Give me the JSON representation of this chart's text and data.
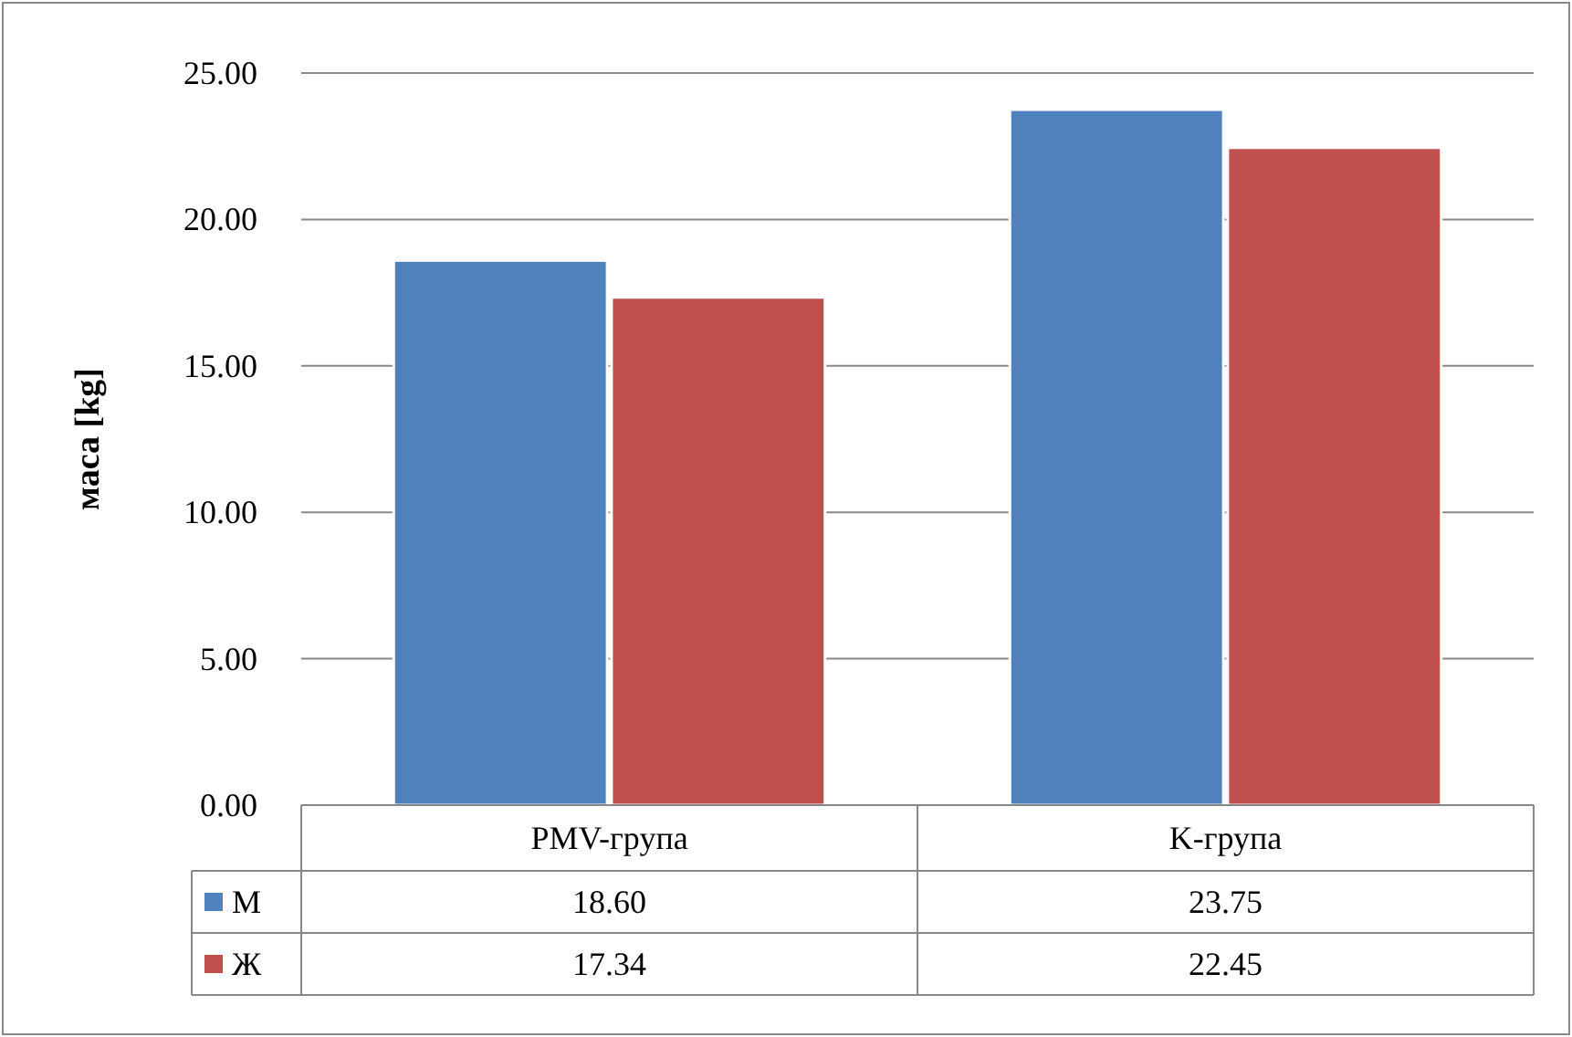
{
  "chart_data": {
    "type": "bar",
    "ylabel": "маса [kg]",
    "categories": [
      "PMV-група",
      "K-група"
    ],
    "series": [
      {
        "name": "М",
        "color": "#4f81bd",
        "values": [
          18.6,
          23.75
        ],
        "value_labels": [
          "18.60",
          "23.75"
        ]
      },
      {
        "name": "Ж",
        "color": "#c0504d",
        "values": [
          17.34,
          22.45
        ],
        "value_labels": [
          "17.34",
          "22.45"
        ]
      }
    ],
    "ylim": [
      0,
      25
    ],
    "yticks": [
      {
        "value": 0,
        "label": "0.00"
      },
      {
        "value": 5,
        "label": "5.00"
      },
      {
        "value": 10,
        "label": "10.00"
      },
      {
        "value": 15,
        "label": "15.00"
      },
      {
        "value": 20,
        "label": "20.00"
      },
      {
        "value": 25,
        "label": "25.00"
      }
    ],
    "grid": "y",
    "legend": "bottom"
  }
}
